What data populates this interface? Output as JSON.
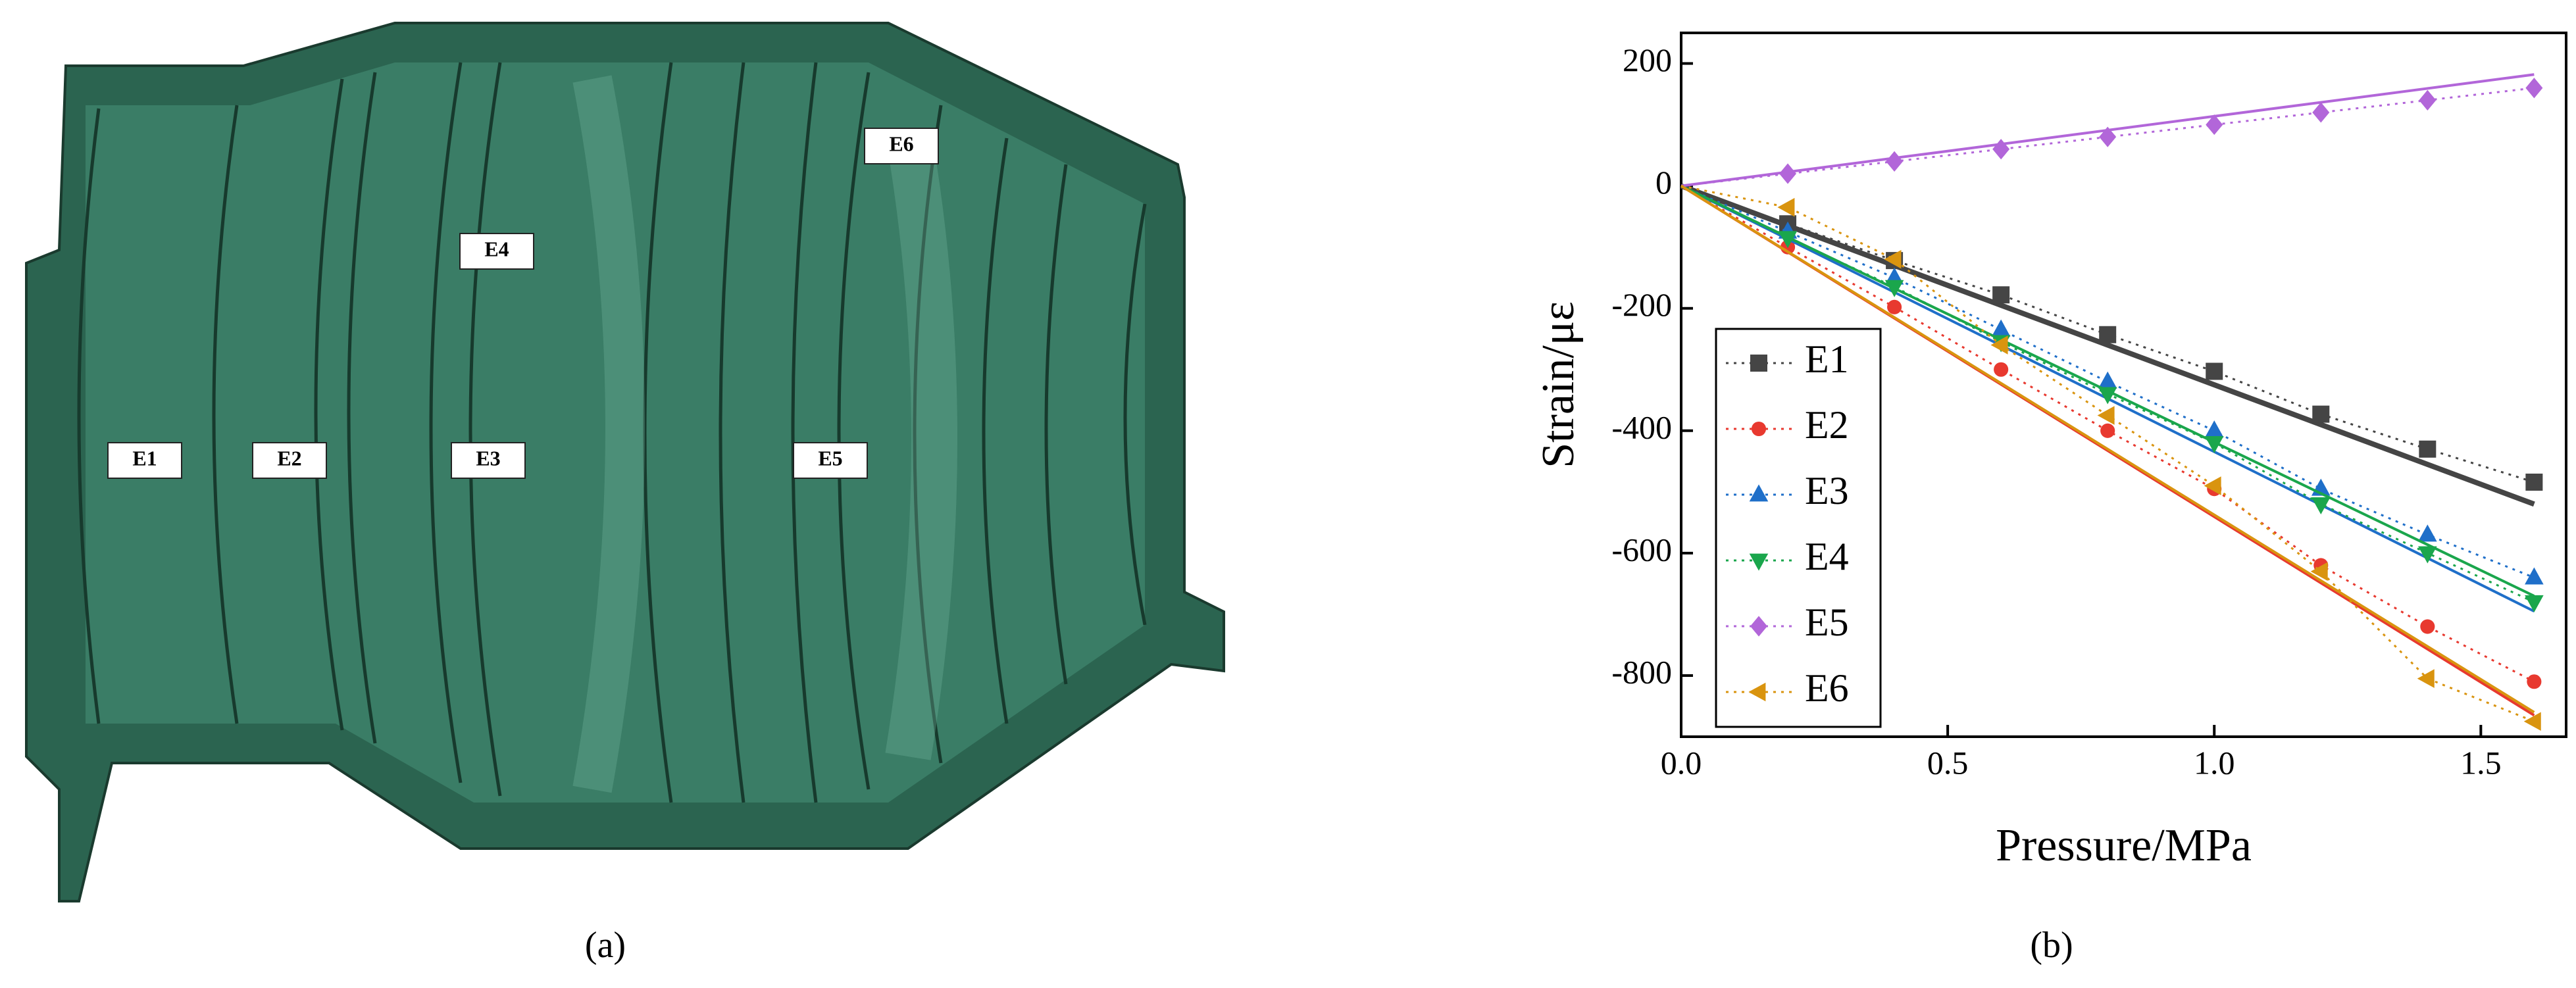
{
  "figure_a": {
    "labels": [
      "E1",
      "E2",
      "E3",
      "E4",
      "E5",
      "E6"
    ],
    "caption": "(a)"
  },
  "chart_data": {
    "type": "line",
    "caption": "(b)",
    "xlabel": "Pressure/MPa",
    "ylabel": "Strain/με",
    "x": [
      0,
      0.2,
      0.4,
      0.6,
      0.8,
      1.0,
      1.2,
      1.4,
      1.6
    ],
    "fit_x": [
      0,
      1.6
    ],
    "xlim": [
      0,
      1.66
    ],
    "ylim": [
      -900,
      250
    ],
    "xticks": [
      {
        "value": 0,
        "label": "0.0"
      },
      0.5,
      {
        "value": 1,
        "label": "1.0"
      },
      1.5
    ],
    "yticks": [
      -800,
      -600,
      -400,
      -200,
      0,
      200
    ],
    "legend": "lower left",
    "series": [
      {
        "name": "E1",
        "color": "#454545",
        "marker": "square",
        "values": [
          0,
          -62,
          -122,
          -178,
          -243,
          -303,
          -373,
          -430,
          -484
        ],
        "fit": [
          0,
          -520
        ]
      },
      {
        "name": "E2",
        "color": "#e8392f",
        "marker": "circle",
        "values": [
          0,
          -100,
          -198,
          -300,
          -400,
          -495,
          -620,
          -720,
          -810
        ],
        "fit": [
          0,
          -865
        ]
      },
      {
        "name": "E3",
        "color": "#1f6fc9",
        "marker": "triangle-up",
        "values": [
          0,
          -75,
          -150,
          -235,
          -320,
          -400,
          -495,
          -570,
          -640
        ],
        "fit": [
          0,
          -695
        ]
      },
      {
        "name": "E4",
        "color": "#1aa64c",
        "marker": "triangle-down",
        "values": [
          0,
          -85,
          -165,
          -255,
          -340,
          -420,
          -520,
          -600,
          -680
        ],
        "fit": [
          0,
          -670
        ]
      },
      {
        "name": "E5",
        "color": "#b266d9",
        "marker": "diamond",
        "values": [
          0,
          20,
          40,
          60,
          80,
          100,
          120,
          140,
          160
        ],
        "fit": [
          0,
          182
        ]
      },
      {
        "name": "E6",
        "color": "#d9940f",
        "marker": "triangle-left",
        "values": [
          0,
          -35,
          -120,
          -260,
          -375,
          -490,
          -630,
          -805,
          -875
        ],
        "fit": [
          0,
          -860
        ]
      }
    ]
  }
}
